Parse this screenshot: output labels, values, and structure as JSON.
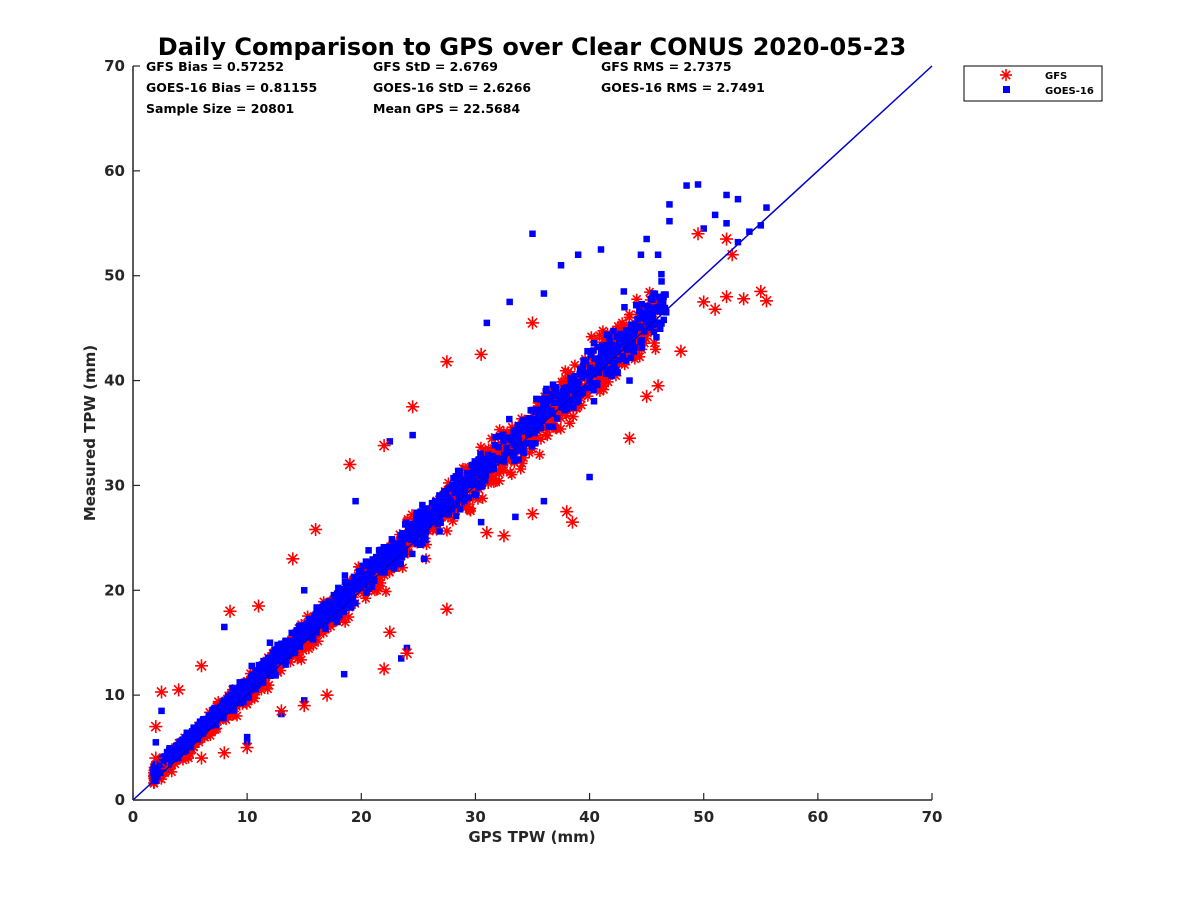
{
  "chart_data": {
    "type": "scatter",
    "title": "Daily Comparison to GPS over Clear CONUS 2020-05-23",
    "xlabel": "GPS TPW (mm)",
    "ylabel": "Measured TPW (mm)",
    "xlim": [
      0,
      70
    ],
    "ylim": [
      0,
      70
    ],
    "xticks": [
      "0",
      "10",
      "20",
      "30",
      "40",
      "50",
      "60",
      "70"
    ],
    "yticks": [
      "0",
      "10",
      "20",
      "30",
      "40",
      "50",
      "60",
      "70"
    ],
    "grid": false,
    "legend_position": "outside-top-right",
    "stats": [
      [
        "GFS Bias = 0.57252",
        "GFS StD = 2.6769",
        "GFS RMS = 2.7375"
      ],
      [
        "GOES-16 Bias = 0.81155",
        "GOES-16 StD = 2.6266",
        "GOES-16 RMS = 2.7491"
      ],
      [
        "Sample Size = 20801",
        "Mean GPS = 22.5684"
      ]
    ],
    "reference_line": {
      "name": "1:1 line",
      "x": [
        0,
        70
      ],
      "y": [
        0,
        70
      ],
      "color": "#0000cc"
    },
    "series": [
      {
        "name": "GFS",
        "marker": "asterisk",
        "color": "#ff0000",
        "cloud_note": "dense cloud roughly following y = x, spread ~2.7 mm",
        "points": [
          [
            2,
            7
          ],
          [
            2.5,
            10.3
          ],
          [
            4,
            10.5
          ],
          [
            6,
            12.8
          ],
          [
            8.5,
            18
          ],
          [
            11,
            18.5
          ],
          [
            14,
            23
          ],
          [
            16,
            25.8
          ],
          [
            19,
            32
          ],
          [
            22,
            33.8
          ],
          [
            24.5,
            37.5
          ],
          [
            27.5,
            41.8
          ],
          [
            30.5,
            42.5
          ],
          [
            35,
            45.5
          ],
          [
            38.5,
            26.5
          ],
          [
            38,
            27.5
          ],
          [
            31,
            25.5
          ],
          [
            32.5,
            25.2
          ],
          [
            35,
            27.3
          ],
          [
            29.5,
            27.8
          ],
          [
            27.5,
            18.2
          ],
          [
            22.5,
            16
          ],
          [
            24,
            14
          ],
          [
            22,
            12.5
          ],
          [
            17,
            10
          ],
          [
            15,
            9
          ],
          [
            13,
            8.5
          ],
          [
            10,
            5
          ],
          [
            8,
            4.5
          ],
          [
            6,
            4
          ],
          [
            3,
            3
          ],
          [
            2,
            4
          ],
          [
            45,
            38.5
          ],
          [
            46,
            39.5
          ],
          [
            43.5,
            34.5
          ],
          [
            48,
            42.8
          ],
          [
            50,
            47.5
          ],
          [
            52,
            48
          ],
          [
            53.5,
            47.8
          ],
          [
            55,
            48.5
          ],
          [
            55.5,
            47.6
          ],
          [
            51,
            46.8
          ],
          [
            49.5,
            54
          ],
          [
            52,
            53.5
          ],
          [
            52.5,
            52
          ]
        ]
      },
      {
        "name": "GOES-16",
        "marker": "square",
        "color": "#0000ff",
        "cloud_note": "dense cloud roughly following y = x, slightly above GFS at high values",
        "points": [
          [
            2,
            5.5
          ],
          [
            2.5,
            8.5
          ],
          [
            3,
            3
          ],
          [
            8,
            16.5
          ],
          [
            10,
            5.5
          ],
          [
            12,
            15
          ],
          [
            15,
            20
          ],
          [
            19.5,
            28.5
          ],
          [
            22.5,
            34.2
          ],
          [
            24.5,
            34.8
          ],
          [
            31,
            45.5
          ],
          [
            33,
            47.5
          ],
          [
            35,
            54
          ],
          [
            36,
            48.3
          ],
          [
            37.5,
            51
          ],
          [
            39,
            52
          ],
          [
            41,
            52.5
          ],
          [
            43,
            48.5
          ],
          [
            44.5,
            52
          ],
          [
            45,
            53.5
          ],
          [
            47,
            56.8
          ],
          [
            48.5,
            58.6
          ],
          [
            49.5,
            58.7
          ],
          [
            50,
            54.5
          ],
          [
            51,
            55.8
          ],
          [
            52,
            57.7
          ],
          [
            53,
            57.3
          ],
          [
            54,
            54.2
          ],
          [
            55,
            54.8
          ],
          [
            55.5,
            56.5
          ],
          [
            53,
            53.2
          ],
          [
            52,
            55
          ],
          [
            47,
            55.2
          ],
          [
            46,
            52
          ],
          [
            43.5,
            40
          ],
          [
            40,
            30.8
          ],
          [
            36,
            28.5
          ],
          [
            33.5,
            27
          ],
          [
            30.5,
            26.5
          ],
          [
            25.5,
            23
          ],
          [
            23.5,
            13.5
          ],
          [
            24,
            14.5
          ],
          [
            18.5,
            12
          ],
          [
            15,
            9.5
          ],
          [
            13,
            8.2
          ],
          [
            10,
            6
          ]
        ]
      }
    ]
  }
}
